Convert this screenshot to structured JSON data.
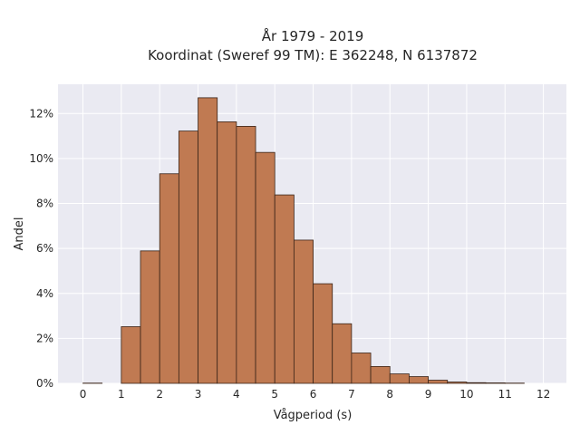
{
  "chart_data": {
    "type": "bar",
    "title_lines": [
      "År 1979 - 2019",
      "Koordinat (Sweref 99 TM): E 362248, N 6137872"
    ],
    "xlabel": "Vågperiod (s)",
    "ylabel": "Andel",
    "bin_width": 0.5,
    "bins": [
      {
        "x0": 0.0,
        "value": 0.0001
      },
      {
        "x0": 0.5,
        "value": 0.0
      },
      {
        "x0": 1.0,
        "value": 0.0252
      },
      {
        "x0": 1.5,
        "value": 0.0589
      },
      {
        "x0": 2.0,
        "value": 0.0932
      },
      {
        "x0": 2.5,
        "value": 0.1122
      },
      {
        "x0": 3.0,
        "value": 0.127
      },
      {
        "x0": 3.5,
        "value": 0.1163
      },
      {
        "x0": 4.0,
        "value": 0.1143
      },
      {
        "x0": 4.5,
        "value": 0.1027
      },
      {
        "x0": 5.0,
        "value": 0.0838
      },
      {
        "x0": 5.5,
        "value": 0.0637
      },
      {
        "x0": 6.0,
        "value": 0.0443
      },
      {
        "x0": 6.5,
        "value": 0.0265
      },
      {
        "x0": 7.0,
        "value": 0.0135
      },
      {
        "x0": 7.5,
        "value": 0.0075
      },
      {
        "x0": 8.0,
        "value": 0.0042
      },
      {
        "x0": 8.5,
        "value": 0.003
      },
      {
        "x0": 9.0,
        "value": 0.0014
      },
      {
        "x0": 9.5,
        "value": 0.0006
      },
      {
        "x0": 10.0,
        "value": 0.0003
      },
      {
        "x0": 10.5,
        "value": 0.0002
      },
      {
        "x0": 11.0,
        "value": 0.0001
      }
    ],
    "xlim": [
      -0.65,
      12.6
    ],
    "ylim": [
      0,
      0.133
    ],
    "xticks": [
      0,
      1,
      2,
      3,
      4,
      5,
      6,
      7,
      8,
      9,
      10,
      11,
      12
    ],
    "yticks": [
      {
        "value": 0.0,
        "label": "0%"
      },
      {
        "value": 0.02,
        "label": "2%"
      },
      {
        "value": 0.04,
        "label": "4%"
      },
      {
        "value": 0.06,
        "label": "6%"
      },
      {
        "value": 0.08,
        "label": "8%"
      },
      {
        "value": 0.1,
        "label": "10%"
      },
      {
        "value": 0.12,
        "label": "12%"
      }
    ],
    "grid": true,
    "colors": {
      "bar_fill": "#c07a52",
      "bar_edge": "#3a2418",
      "plot_bg": "#eaeaf2",
      "grid": "#ffffff"
    }
  }
}
